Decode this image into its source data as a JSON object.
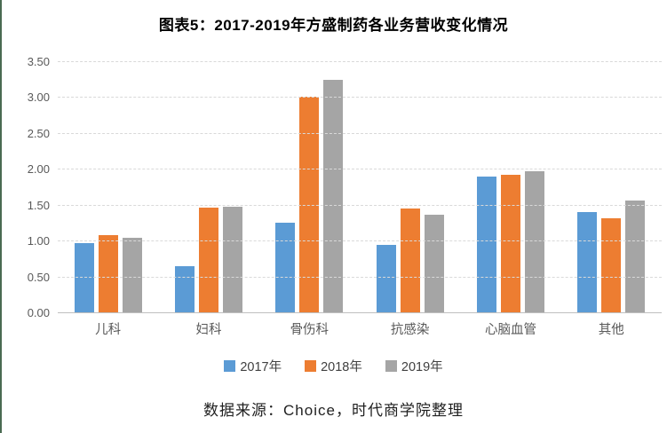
{
  "title": "图表5：2017-2019年方盛制药各业务营收变化情况",
  "footer": "数据来源：Choice，时代商学院整理",
  "colors": {
    "series": [
      "#5B9BD5",
      "#ED7D31",
      "#A5A5A5"
    ],
    "gridline": "#D9D9D9",
    "axis_line": "#BFBFBF",
    "axis_text": "#595959",
    "title_text": "#000000",
    "left_border": "#4A6B52"
  },
  "chart_data": {
    "type": "bar",
    "title": "图表5：2017-2019年方盛制药各业务营收变化情况",
    "categories": [
      "儿科",
      "妇科",
      "骨伤科",
      "抗感染",
      "心脑血管",
      "其他"
    ],
    "series": [
      {
        "name": "2017年",
        "color": "#5B9BD5",
        "values": [
          0.98,
          0.65,
          1.26,
          0.95,
          1.9,
          1.41
        ]
      },
      {
        "name": "2018年",
        "color": "#ED7D31",
        "values": [
          1.09,
          1.47,
          3.02,
          1.46,
          1.93,
          1.32
        ]
      },
      {
        "name": "2019年",
        "color": "#A5A5A5",
        "values": [
          1.05,
          1.48,
          3.25,
          1.37,
          1.98,
          1.57
        ]
      }
    ],
    "xlabel": "",
    "ylabel": "",
    "ylim": [
      0,
      3.5
    ],
    "ytick_step": 0.5,
    "ytick_labels": [
      "0.00",
      "0.50",
      "1.00",
      "1.50",
      "2.00",
      "2.50",
      "3.00",
      "3.50"
    ],
    "grid": true,
    "legend_position": "bottom",
    "source_note": "数据来源：Choice，时代商学院整理"
  }
}
